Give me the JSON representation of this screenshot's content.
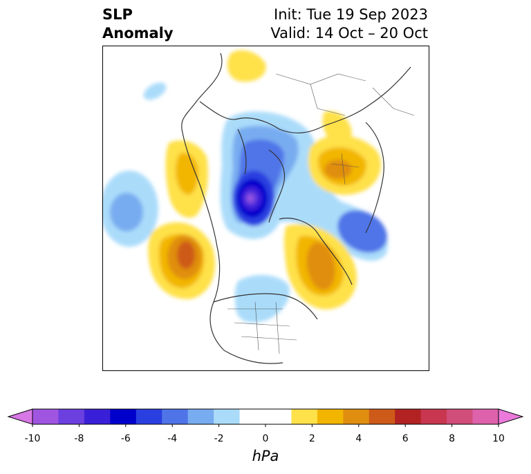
{
  "title": {
    "left_line1": "SLP",
    "left_line2": "Anomaly",
    "right_line1": "Init: Tue 19 Sep 2023",
    "right_line2": "Valid: 14 Oct – 20 Oct"
  },
  "colorbar": {
    "units": "hPa",
    "tick_labels": [
      "-10",
      "-8",
      "-6",
      "-4",
      "-2",
      "0",
      "2",
      "4",
      "6",
      "8",
      "10"
    ],
    "colors": [
      "#d877e6",
      "#a055e0",
      "#6b3fe0",
      "#3a1fd8",
      "#0000cc",
      "#2a3fe0",
      "#4f74e8",
      "#78acf0",
      "#aadcfa",
      "#ffffff",
      "#ffffff",
      "#ffe14a",
      "#f2b600",
      "#e08e10",
      "#cd5a18",
      "#b22222",
      "#c8374f",
      "#d24e7a",
      "#dd62ab",
      "#eb7adb"
    ],
    "extend": "both"
  },
  "map": {
    "projection": "polar-stereographic",
    "features": [
      "coastlines",
      "country-borders",
      "state-province-borders"
    ]
  }
}
